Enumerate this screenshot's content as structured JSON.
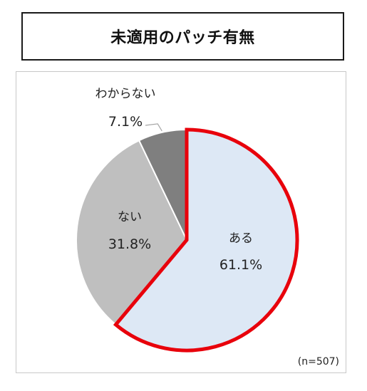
{
  "header": {
    "title": "未適用のパッチ有無"
  },
  "chart_data": {
    "type": "pie",
    "title": "未適用のパッチ有無",
    "slices": [
      {
        "label": "ある",
        "value": 61.1,
        "value_label": "61.1%",
        "color": "#dde8f5",
        "highlight": true
      },
      {
        "label": "ない",
        "value": 31.8,
        "value_label": "31.8%",
        "color": "#bfbfbf",
        "highlight": false
      },
      {
        "label": "わからない",
        "value": 7.1,
        "value_label": "7.1%",
        "color": "#7f7f7f",
        "highlight": false
      }
    ],
    "start_position": "12 o'clock",
    "direction": "clockwise",
    "highlight_color": "#e8000b",
    "note": "(n=507)"
  }
}
